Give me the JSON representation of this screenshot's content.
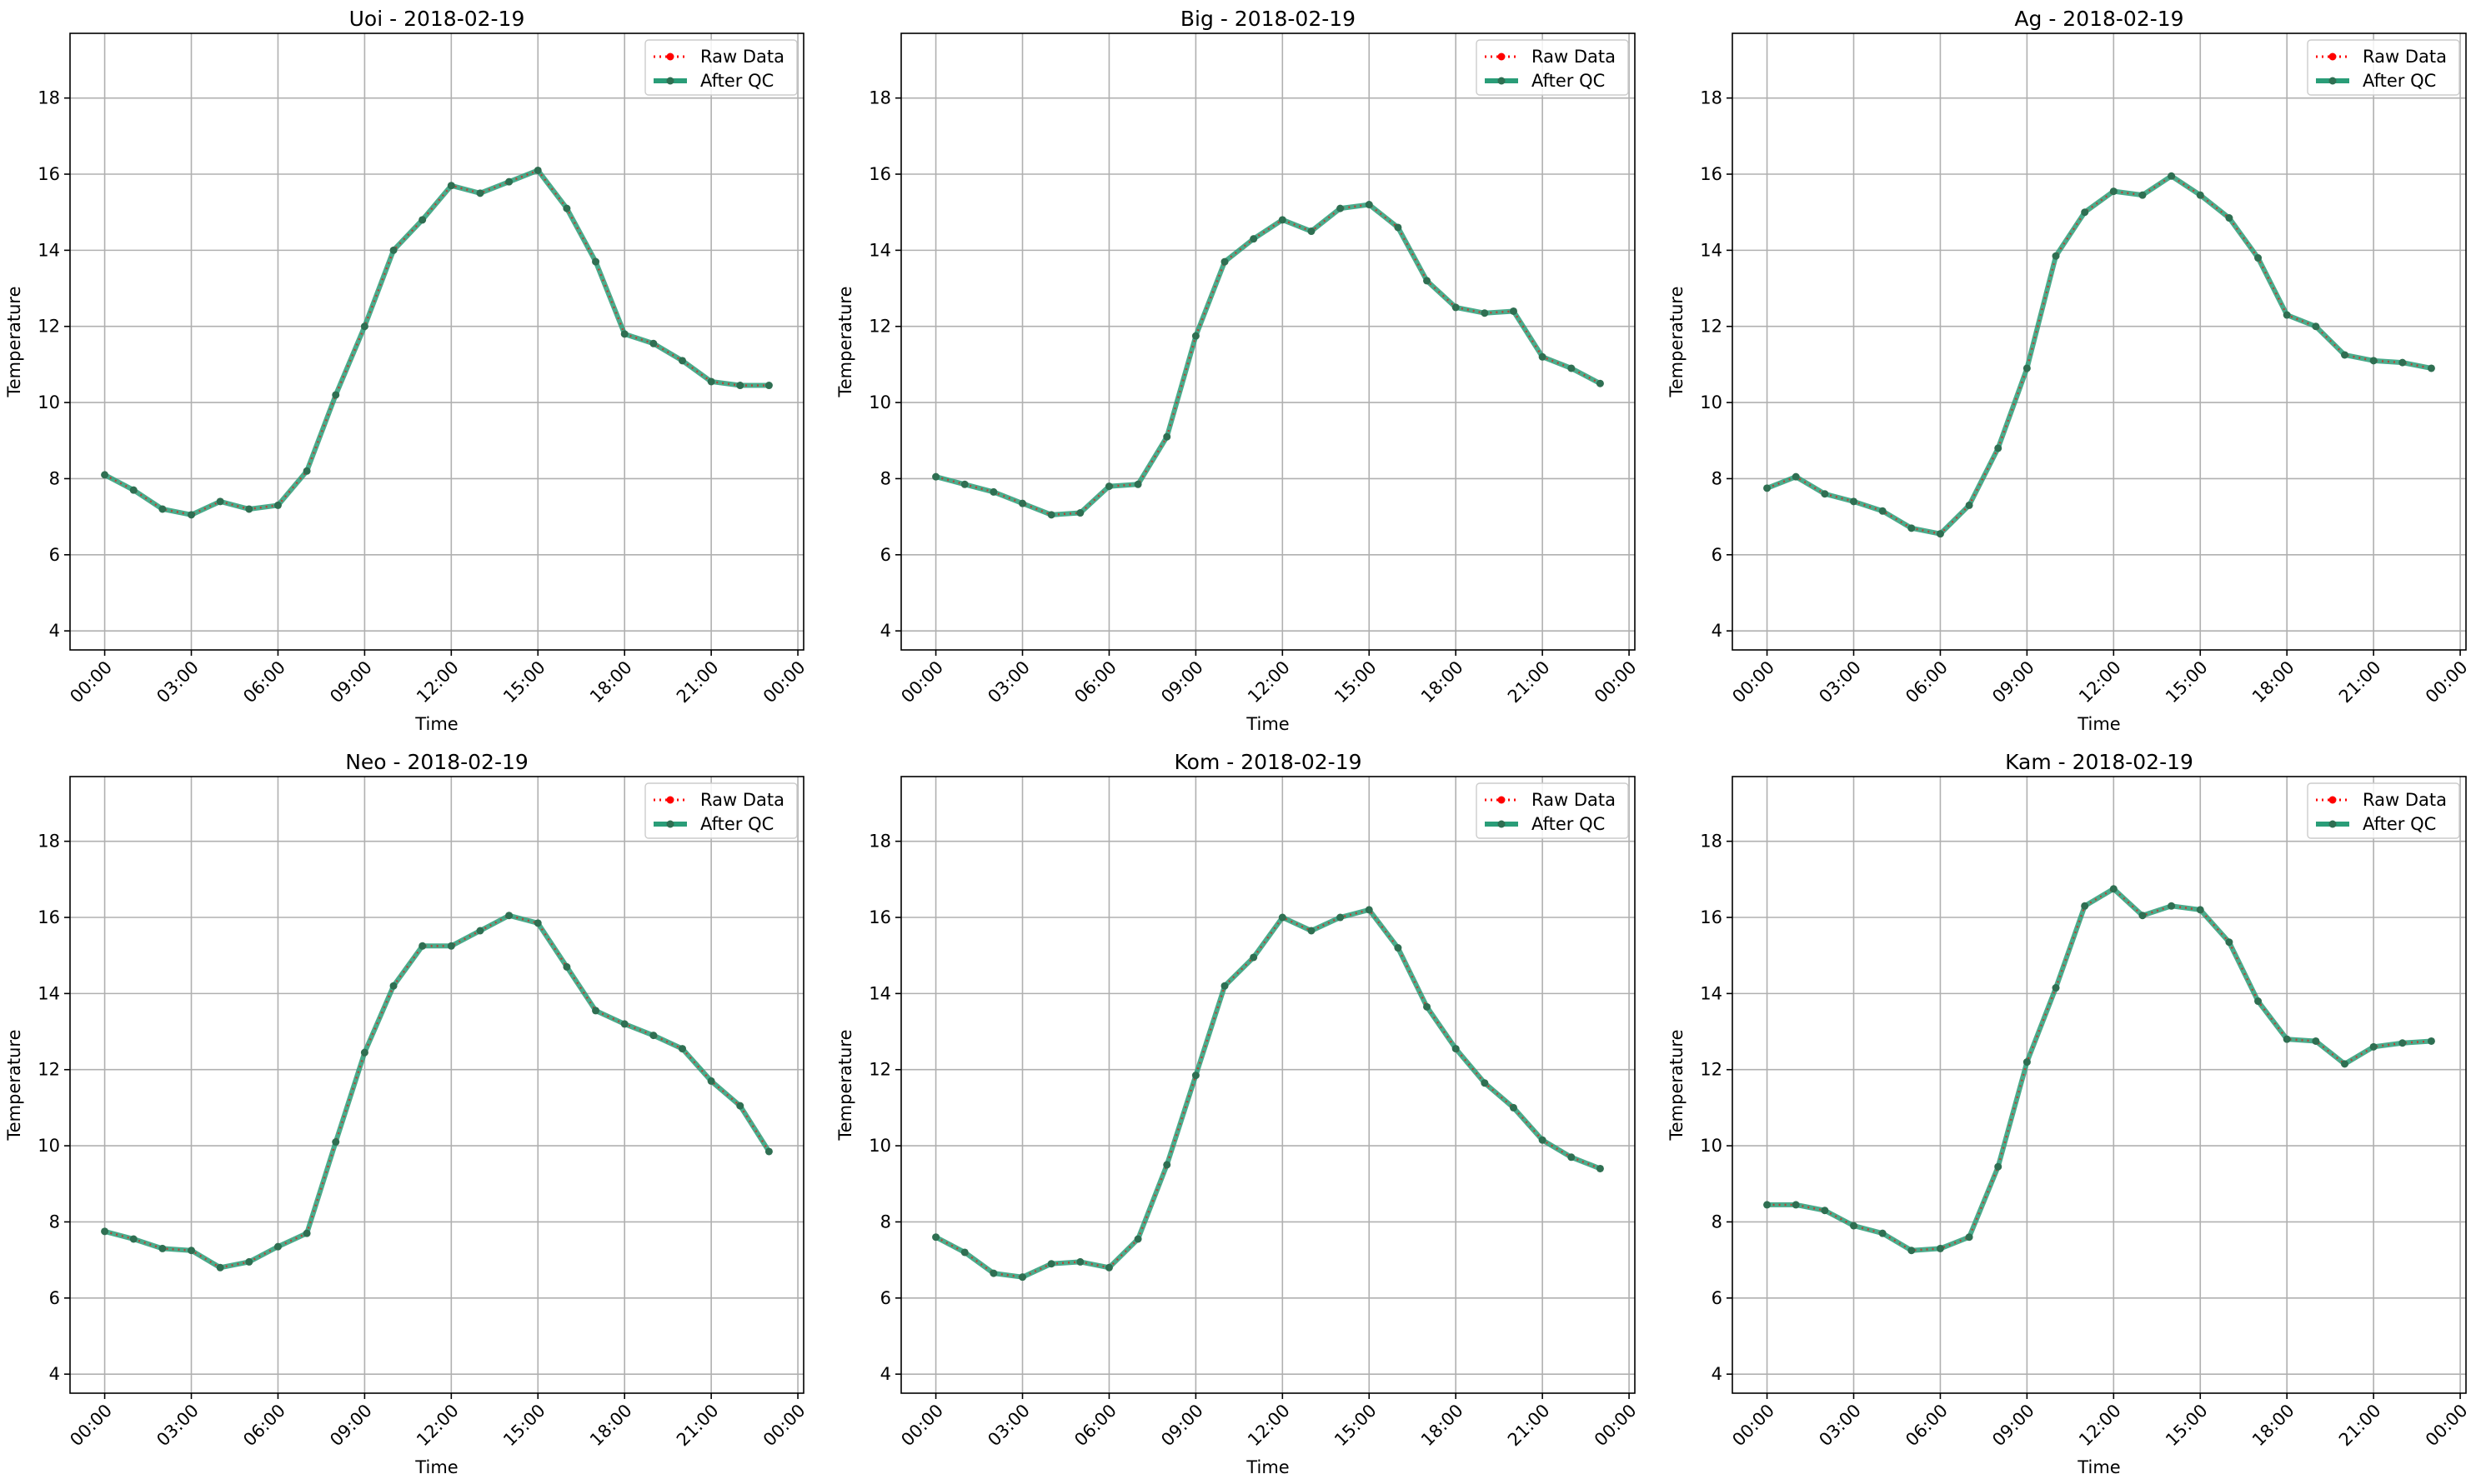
{
  "colors": {
    "raw": "#ff0000",
    "qc": "#2a9d78",
    "grid": "#b0b0b0",
    "axes": "#000000",
    "background": "#ffffff"
  },
  "legend": {
    "raw_label": "Raw Data",
    "qc_label": "After QC"
  },
  "x_tick_labels": [
    "00:00",
    "03:00",
    "06:00",
    "09:00",
    "12:00",
    "15:00",
    "18:00",
    "21:00",
    "00:00"
  ],
  "y_ticks": [
    4,
    6,
    8,
    10,
    12,
    14,
    16,
    18
  ],
  "chart_data": [
    {
      "type": "line",
      "title": "Uoi - 2018-02-19",
      "xlabel": "Time",
      "ylabel": "Temperature",
      "xlim_hours": [
        -1.2,
        24.2
      ],
      "ylim": [
        3.5,
        19.7
      ],
      "grid": true,
      "legend_position": "top-right",
      "x_hours": [
        0,
        1,
        2,
        3,
        4,
        5,
        6,
        7,
        8,
        9,
        10,
        11,
        12,
        13,
        14,
        15,
        16,
        17,
        18,
        19,
        20,
        21,
        22,
        23
      ],
      "series": [
        {
          "name": "Raw Data",
          "values": [
            8.1,
            7.7,
            7.2,
            7.05,
            7.4,
            7.2,
            7.3,
            8.2,
            10.2,
            12.0,
            14.0,
            14.8,
            15.7,
            15.5,
            15.8,
            16.1,
            15.1,
            13.7,
            11.8,
            11.55,
            11.1,
            10.55,
            10.45,
            10.45
          ]
        },
        {
          "name": "After QC",
          "values": [
            8.1,
            7.7,
            7.2,
            7.05,
            7.4,
            7.2,
            7.3,
            8.2,
            10.2,
            12.0,
            14.0,
            14.8,
            15.7,
            15.5,
            15.8,
            16.1,
            15.1,
            13.7,
            11.8,
            11.55,
            11.1,
            10.55,
            10.45,
            10.45
          ]
        }
      ]
    },
    {
      "type": "line",
      "title": "Big - 2018-02-19",
      "xlabel": "Time",
      "ylabel": "Temperature",
      "xlim_hours": [
        -1.2,
        24.2
      ],
      "ylim": [
        3.5,
        19.7
      ],
      "grid": true,
      "legend_position": "top-right",
      "x_hours": [
        0,
        1,
        2,
        3,
        4,
        5,
        6,
        7,
        8,
        9,
        10,
        11,
        12,
        13,
        14,
        15,
        16,
        17,
        18,
        19,
        20,
        21,
        22,
        23
      ],
      "series": [
        {
          "name": "Raw Data",
          "values": [
            8.05,
            7.85,
            7.65,
            7.35,
            7.05,
            7.1,
            7.8,
            7.85,
            9.1,
            11.75,
            13.7,
            14.3,
            14.8,
            14.5,
            15.1,
            15.2,
            14.6,
            13.2,
            12.5,
            12.35,
            12.4,
            11.2,
            10.9,
            10.5
          ]
        },
        {
          "name": "After QC",
          "values": [
            8.05,
            7.85,
            7.65,
            7.35,
            7.05,
            7.1,
            7.8,
            7.85,
            9.1,
            11.75,
            13.7,
            14.3,
            14.8,
            14.5,
            15.1,
            15.2,
            14.6,
            13.2,
            12.5,
            12.35,
            12.4,
            11.2,
            10.9,
            10.5
          ]
        }
      ]
    },
    {
      "type": "line",
      "title": "Ag - 2018-02-19",
      "xlabel": "Time",
      "ylabel": "Temperature",
      "xlim_hours": [
        -1.2,
        24.2
      ],
      "ylim": [
        3.5,
        19.7
      ],
      "grid": true,
      "legend_position": "top-right",
      "x_hours": [
        0,
        1,
        2,
        3,
        4,
        5,
        6,
        7,
        8,
        9,
        10,
        11,
        12,
        13,
        14,
        15,
        16,
        17,
        18,
        19,
        20,
        21,
        22,
        23
      ],
      "series": [
        {
          "name": "Raw Data",
          "values": [
            7.75,
            8.05,
            7.6,
            7.4,
            7.15,
            6.7,
            6.55,
            7.3,
            8.8,
            10.9,
            13.85,
            15.0,
            15.55,
            15.45,
            15.95,
            15.45,
            14.85,
            13.8,
            12.3,
            12.0,
            11.25,
            11.1,
            11.05,
            10.9
          ]
        },
        {
          "name": "After QC",
          "values": [
            7.75,
            8.05,
            7.6,
            7.4,
            7.15,
            6.7,
            6.55,
            7.3,
            8.8,
            10.9,
            13.85,
            15.0,
            15.55,
            15.45,
            15.95,
            15.45,
            14.85,
            13.8,
            12.3,
            12.0,
            11.25,
            11.1,
            11.05,
            10.9
          ]
        }
      ]
    },
    {
      "type": "line",
      "title": "Neo - 2018-02-19",
      "xlabel": "Time",
      "ylabel": "Temperature",
      "xlim_hours": [
        -1.2,
        24.2
      ],
      "ylim": [
        3.5,
        19.7
      ],
      "grid": true,
      "legend_position": "top-right",
      "x_hours": [
        0,
        1,
        2,
        3,
        4,
        5,
        6,
        7,
        8,
        9,
        10,
        11,
        12,
        13,
        14,
        15,
        16,
        17,
        18,
        19,
        20,
        21,
        22,
        23
      ],
      "series": [
        {
          "name": "Raw Data",
          "values": [
            7.75,
            7.55,
            7.3,
            7.25,
            6.8,
            6.95,
            7.35,
            7.7,
            10.1,
            12.45,
            14.2,
            15.25,
            15.25,
            15.65,
            16.05,
            15.85,
            14.7,
            13.55,
            13.2,
            12.9,
            12.55,
            11.7,
            11.05,
            9.85
          ]
        },
        {
          "name": "After QC",
          "values": [
            7.75,
            7.55,
            7.3,
            7.25,
            6.8,
            6.95,
            7.35,
            7.7,
            10.1,
            12.45,
            14.2,
            15.25,
            15.25,
            15.65,
            16.05,
            15.85,
            14.7,
            13.55,
            13.2,
            12.9,
            12.55,
            11.7,
            11.05,
            9.85
          ]
        }
      ]
    },
    {
      "type": "line",
      "title": "Kom - 2018-02-19",
      "xlabel": "Time",
      "ylabel": "Temperature",
      "xlim_hours": [
        -1.2,
        24.2
      ],
      "ylim": [
        3.5,
        19.7
      ],
      "grid": true,
      "legend_position": "top-right",
      "x_hours": [
        0,
        1,
        2,
        3,
        4,
        5,
        6,
        7,
        8,
        9,
        10,
        11,
        12,
        13,
        14,
        15,
        16,
        17,
        18,
        19,
        20,
        21,
        22,
        23
      ],
      "series": [
        {
          "name": "Raw Data",
          "values": [
            7.6,
            7.2,
            6.65,
            6.55,
            6.9,
            6.95,
            6.8,
            7.55,
            9.5,
            11.85,
            14.2,
            14.95,
            16.0,
            15.65,
            16.0,
            16.2,
            15.2,
            13.65,
            12.55,
            11.65,
            11.0,
            10.15,
            9.7,
            9.4
          ]
        },
        {
          "name": "After QC",
          "values": [
            7.6,
            7.2,
            6.65,
            6.55,
            6.9,
            6.95,
            6.8,
            7.55,
            9.5,
            11.85,
            14.2,
            14.95,
            16.0,
            15.65,
            16.0,
            16.2,
            15.2,
            13.65,
            12.55,
            11.65,
            11.0,
            10.15,
            9.7,
            9.4
          ]
        }
      ]
    },
    {
      "type": "line",
      "title": "Kam - 2018-02-19",
      "xlabel": "Time",
      "ylabel": "Temperature",
      "xlim_hours": [
        -1.2,
        24.2
      ],
      "ylim": [
        3.5,
        19.7
      ],
      "grid": true,
      "legend_position": "top-right",
      "x_hours": [
        0,
        1,
        2,
        3,
        4,
        5,
        6,
        7,
        8,
        9,
        10,
        11,
        12,
        13,
        14,
        15,
        16,
        17,
        18,
        19,
        20,
        21,
        22,
        23
      ],
      "series": [
        {
          "name": "Raw Data",
          "values": [
            8.45,
            8.45,
            8.3,
            7.9,
            7.7,
            7.25,
            7.3,
            7.6,
            9.45,
            12.2,
            14.15,
            16.3,
            16.75,
            16.05,
            16.3,
            16.2,
            15.35,
            13.8,
            12.8,
            12.75,
            12.15,
            12.6,
            12.7,
            12.75
          ]
        },
        {
          "name": "After QC",
          "values": [
            8.45,
            8.45,
            8.3,
            7.9,
            7.7,
            7.25,
            7.3,
            7.6,
            9.45,
            12.2,
            14.15,
            16.3,
            16.75,
            16.05,
            16.3,
            16.2,
            15.35,
            13.8,
            12.8,
            12.75,
            12.15,
            12.6,
            12.7,
            12.75
          ]
        }
      ]
    }
  ]
}
